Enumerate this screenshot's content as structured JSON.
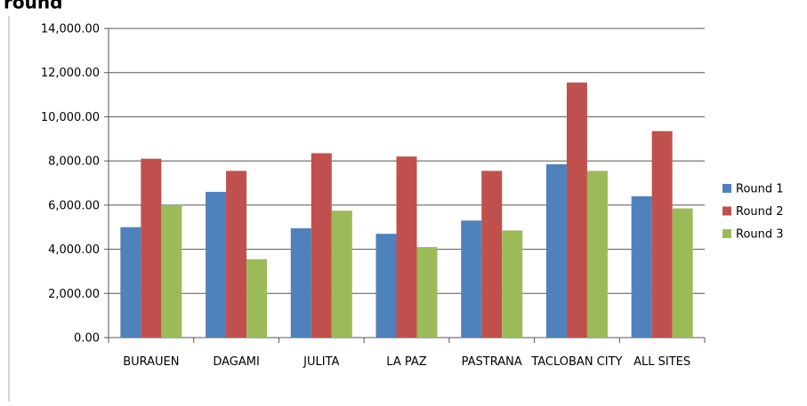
{
  "chart_data": {
    "type": "bar",
    "title": "round",
    "categories": [
      "BURAUEN",
      "DAGAMI",
      "JULITA",
      "LA PAZ",
      "PASTRANA",
      "TACLOBAN CITY",
      "ALL SITES"
    ],
    "series": [
      {
        "name": "Round 1",
        "color": "#4f81bd",
        "values": [
          5000,
          6600,
          4950,
          4700,
          5300,
          7850,
          6400
        ]
      },
      {
        "name": "Round 2",
        "color": "#c0504d",
        "values": [
          8100,
          7550,
          8350,
          8200,
          7550,
          11550,
          9350
        ]
      },
      {
        "name": "Round 3",
        "color": "#9bbb59",
        "values": [
          6000,
          3550,
          5750,
          4100,
          4850,
          7550,
          5850
        ]
      }
    ],
    "ylim": [
      0,
      14000
    ],
    "yticks": [
      {
        "value": 0,
        "label": "0.00"
      },
      {
        "value": 2000,
        "label": "2,000.00"
      },
      {
        "value": 4000,
        "label": "4,000.00"
      },
      {
        "value": 6000,
        "label": "6,000.00"
      },
      {
        "value": 8000,
        "label": "8,000.00"
      },
      {
        "value": 10000,
        "label": "10,000.00"
      },
      {
        "value": 12000,
        "label": "12,000.00"
      },
      {
        "value": 14000,
        "label": "14,000.00"
      }
    ],
    "grid": true,
    "legend": "right"
  }
}
